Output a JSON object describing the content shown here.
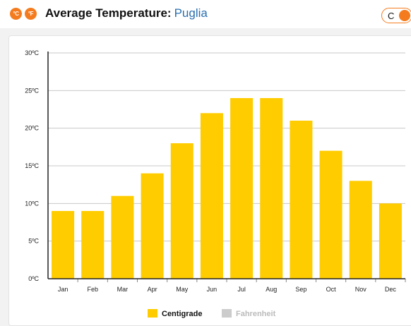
{
  "header": {
    "celsius_icon_text": "°C",
    "fahrenheit_icon_text": "°F",
    "title_label": "Average Temperature:",
    "title_place": "Puglia",
    "toggle_label": "C"
  },
  "colors": {
    "accent": "#f47c1e",
    "bar": "#ffcc00",
    "inactive": "#cccccc",
    "place_link": "#2a6fb0"
  },
  "chart_data": {
    "type": "bar",
    "title": "",
    "xlabel": "",
    "ylabel": "",
    "categories": [
      "Jan",
      "Feb",
      "Mar",
      "Apr",
      "May",
      "Jun",
      "Jul",
      "Aug",
      "Sep",
      "Oct",
      "Nov",
      "Dec"
    ],
    "series": [
      {
        "name": "Centigrade",
        "values": [
          9,
          9,
          11,
          14,
          18,
          22,
          24,
          24,
          21,
          17,
          13,
          10
        ]
      }
    ],
    "ylim": [
      0,
      30
    ],
    "yticks": [
      0,
      5,
      10,
      15,
      20,
      25,
      30
    ],
    "ytick_labels": [
      "0ºC",
      "5ºC",
      "10ºC",
      "15ºC",
      "20ºC",
      "25ºC",
      "30ºC"
    ],
    "grid": true,
    "legend": {
      "position": "bottom",
      "items": [
        {
          "label": "Centigrade",
          "active": true
        },
        {
          "label": "Fahrenheit",
          "active": false
        }
      ]
    }
  }
}
